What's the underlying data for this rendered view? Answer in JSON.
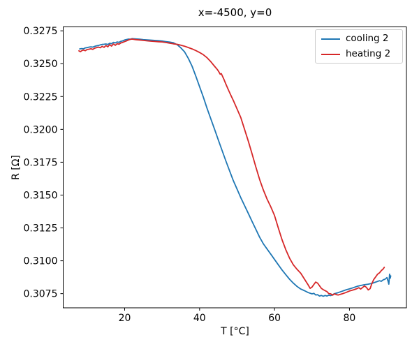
{
  "chart_data": {
    "type": "line",
    "title": "x=-4500, y=0",
    "xlabel": "T [°C]",
    "ylabel": "R [Ω]",
    "xlim": [
      3.6,
      95.2
    ],
    "ylim": [
      0.30642,
      0.3278
    ],
    "xticks": [
      20,
      40,
      60,
      80
    ],
    "yticks": [
      0.3075,
      0.31,
      0.3125,
      0.315,
      0.3175,
      0.32,
      0.3225,
      0.325,
      0.3275
    ],
    "grid": false,
    "legend_position": "upper right",
    "series": [
      {
        "name": "cooling 2",
        "color": "#1f77b4",
        "x": [
          8,
          8.5,
          9,
          9.5,
          10,
          10.5,
          11,
          11.5,
          12,
          12.5,
          13,
          13.5,
          14,
          14.5,
          15,
          15.5,
          16,
          16.5,
          17,
          17.5,
          18,
          18.5,
          19,
          19.5,
          20,
          20.5,
          21,
          21.5,
          22,
          23,
          24,
          25,
          26,
          27,
          28,
          29,
          30,
          31,
          32,
          33,
          34,
          35,
          36,
          37,
          38,
          39,
          40,
          41,
          42,
          43,
          44,
          45,
          46,
          47,
          48,
          49,
          50,
          51,
          52,
          53,
          54,
          55,
          56,
          57,
          58,
          59,
          60,
          61,
          62,
          63,
          64,
          65,
          66,
          67,
          68,
          69,
          70,
          70.5,
          71,
          71.5,
          72,
          72.5,
          73,
          73.5,
          74,
          74.5,
          75,
          75.5,
          76,
          77,
          78,
          79,
          80,
          81,
          82,
          83,
          84,
          85,
          86,
          87,
          88,
          88.5,
          89,
          89.5,
          90,
          90.3,
          90.5,
          90.7,
          90.9,
          91
        ],
        "y": [
          0.32612,
          0.32615,
          0.32613,
          0.3262,
          0.32622,
          0.32626,
          0.32628,
          0.32626,
          0.32632,
          0.32636,
          0.32638,
          0.32643,
          0.32646,
          0.32648,
          0.3265,
          0.32646,
          0.32655,
          0.32652,
          0.32662,
          0.32658,
          0.32665,
          0.32662,
          0.3267,
          0.32674,
          0.3268,
          0.32684,
          0.32687,
          0.32686,
          0.3269,
          0.32688,
          0.32686,
          0.32683,
          0.32681,
          0.32679,
          0.32677,
          0.32675,
          0.32672,
          0.32668,
          0.32664,
          0.32659,
          0.32645,
          0.3262,
          0.3259,
          0.3254,
          0.3248,
          0.32405,
          0.32325,
          0.32245,
          0.3216,
          0.3208,
          0.32,
          0.3192,
          0.3184,
          0.3176,
          0.31685,
          0.3161,
          0.31545,
          0.3148,
          0.3142,
          0.3136,
          0.313,
          0.3124,
          0.3118,
          0.3113,
          0.3109,
          0.3105,
          0.3101,
          0.3097,
          0.3093,
          0.30895,
          0.3086,
          0.3083,
          0.30805,
          0.30785,
          0.30772,
          0.30758,
          0.30748,
          0.30752,
          0.3074,
          0.30742,
          0.30732,
          0.30736,
          0.3073,
          0.30736,
          0.30732,
          0.30738,
          0.30735,
          0.30742,
          0.3075,
          0.30758,
          0.30768,
          0.30778,
          0.30786,
          0.30795,
          0.30805,
          0.30812,
          0.30818,
          0.30822,
          0.30828,
          0.30838,
          0.30848,
          0.30844,
          0.30855,
          0.3086,
          0.30872,
          0.30845,
          0.30822,
          0.30898,
          0.30868,
          0.30885
        ]
      },
      {
        "name": "heating 2",
        "color": "#d62728",
        "x": [
          7.8,
          8.2,
          8.6,
          9,
          9.5,
          10,
          10.5,
          11,
          11.5,
          12,
          12.5,
          13,
          13.5,
          14,
          14.5,
          15,
          15.5,
          16,
          16.5,
          17,
          17.5,
          18,
          18.5,
          19,
          19.5,
          20,
          20.5,
          21,
          21.5,
          22,
          23,
          24,
          25,
          26,
          27,
          28,
          29,
          30,
          31,
          32,
          33,
          34,
          35,
          36,
          37,
          38,
          39,
          40,
          41,
          42,
          43,
          44,
          44.8,
          45.2,
          45.5,
          45.8,
          46.5,
          47,
          47.8,
          48.5,
          49,
          50,
          51,
          52,
          53,
          54,
          55,
          56,
          57,
          58,
          59,
          60,
          61,
          62,
          63,
          64,
          65,
          66,
          67,
          68,
          69,
          69.5,
          70,
          70.5,
          71,
          71.5,
          72,
          72.5,
          73,
          74,
          74.5,
          75,
          75.5,
          76,
          76.5,
          77,
          78,
          79,
          80,
          81,
          82,
          82.5,
          83,
          84,
          84.5,
          85,
          85.5,
          86,
          86.5,
          87,
          87.5,
          88,
          88.5,
          89,
          89.3
        ],
        "y": [
          0.32598,
          0.32591,
          0.326,
          0.32603,
          0.32599,
          0.32608,
          0.3261,
          0.32613,
          0.32609,
          0.32618,
          0.32622,
          0.32626,
          0.32621,
          0.32632,
          0.32624,
          0.32638,
          0.32628,
          0.32645,
          0.32634,
          0.3265,
          0.3264,
          0.32652,
          0.32648,
          0.32658,
          0.32662,
          0.32668,
          0.32674,
          0.3268,
          0.32685,
          0.32687,
          0.32683,
          0.3268,
          0.32677,
          0.32674,
          0.32671,
          0.32669,
          0.32667,
          0.32665,
          0.32661,
          0.32656,
          0.32651,
          0.32647,
          0.32641,
          0.32633,
          0.32623,
          0.32612,
          0.326,
          0.32585,
          0.32568,
          0.32545,
          0.32515,
          0.3248,
          0.32453,
          0.32435,
          0.3242,
          0.32424,
          0.3238,
          0.32345,
          0.32293,
          0.3225,
          0.3222,
          0.32155,
          0.3209,
          0.32,
          0.3191,
          0.31815,
          0.31715,
          0.3162,
          0.3154,
          0.3147,
          0.3141,
          0.31345,
          0.3125,
          0.3116,
          0.31085,
          0.3102,
          0.3097,
          0.30935,
          0.30905,
          0.3086,
          0.30815,
          0.3079,
          0.308,
          0.3082,
          0.30838,
          0.3083,
          0.3081,
          0.3079,
          0.3078,
          0.30765,
          0.3075,
          0.30748,
          0.30738,
          0.30748,
          0.30742,
          0.3074,
          0.30748,
          0.30758,
          0.3077,
          0.30778,
          0.30788,
          0.30795,
          0.30785,
          0.30808,
          0.30798,
          0.30778,
          0.30788,
          0.30828,
          0.30858,
          0.30878,
          0.30898,
          0.30908,
          0.30925,
          0.30938,
          0.3095
        ]
      }
    ]
  }
}
